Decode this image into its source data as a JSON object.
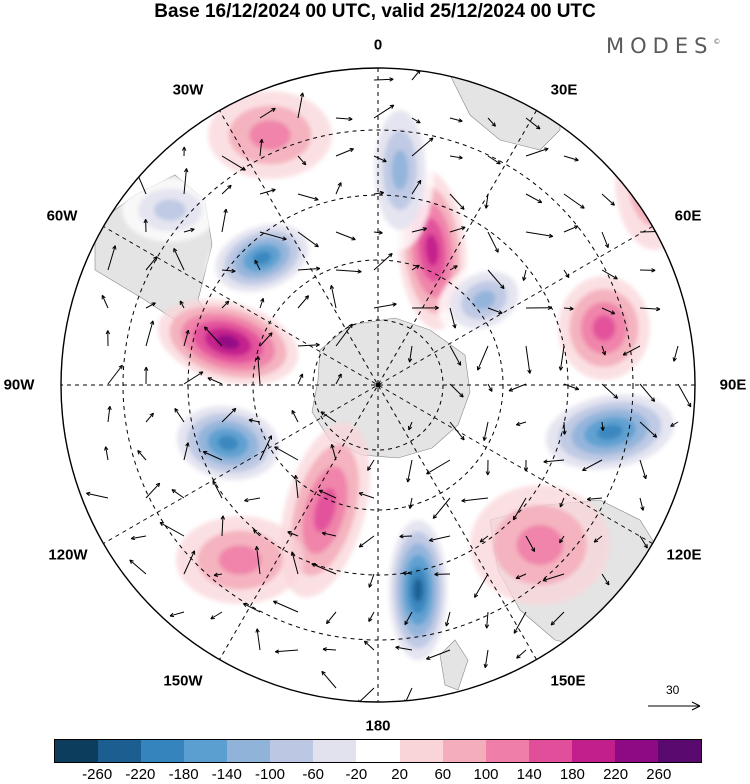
{
  "title": "Base 16/12/2024 00 UTC, valid 25/12/2024 00 UTC",
  "brand": "MODES",
  "brand_mark": "©",
  "longitude_labels": {
    "lon_0": "0",
    "lon_30e": "30E",
    "lon_60e": "60E",
    "lon_90e": "90E",
    "lon_120e": "120E",
    "lon_150e": "150E",
    "lon_180": "180",
    "lon_150w": "150W",
    "lon_120w": "120W",
    "lon_90w": "90W",
    "lon_60w": "60W",
    "lon_30w": "30W"
  },
  "vector_scale_label": "30",
  "colorbar": {
    "colors": [
      "#0d3d5c",
      "#1b5e8f",
      "#3684bd",
      "#5a9fcf",
      "#8fb3d9",
      "#bcc8e3",
      "#e2e2ef",
      "#ffffff",
      "#f9d5d9",
      "#f4aebb",
      "#ef7fa8",
      "#e14e9a",
      "#c21f8c",
      "#8e0a84",
      "#5a0a6e"
    ],
    "ticks": [
      "-260",
      "-220",
      "-180",
      "-140",
      "-100",
      "-60",
      "-20",
      "20",
      "60",
      "100",
      "140",
      "180",
      "220",
      "260"
    ]
  },
  "anomaly_features": [
    {
      "sign": "negative",
      "level": -180
    },
    {
      "sign": "positive",
      "level": 180
    },
    {
      "sign": "negative",
      "level": -180
    },
    {
      "sign": "positive",
      "level": 140
    },
    {
      "sign": "negative",
      "level": -100
    },
    {
      "sign": "positive",
      "level": 100
    },
    {
      "sign": "negative",
      "level": -180
    },
    {
      "sign": "positive",
      "level": 60
    },
    {
      "sign": "negative",
      "level": -220
    },
    {
      "sign": "positive",
      "level": 100
    },
    {
      "sign": "positive",
      "level": 60
    },
    {
      "sign": "negative",
      "level": -100
    },
    {
      "sign": "positive",
      "level": 60
    },
    {
      "sign": "negative",
      "level": -60
    },
    {
      "sign": "positive",
      "level": 60
    }
  ]
}
